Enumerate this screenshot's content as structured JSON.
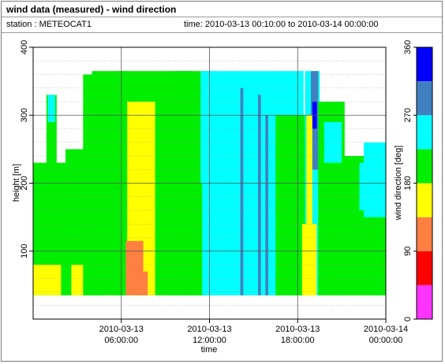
{
  "window": {
    "title": "wind data (measured) - wind direction",
    "station_label": "station : METEOCAT1",
    "time_label": "time: 2010-03-13 00:10:00 to 2010-03-14 00:00:00"
  },
  "chart_data": {
    "type": "heatmap",
    "title": "",
    "xlabel": "time",
    "ylabel": "height [m]",
    "colorbar_label": "wind direction [deg]",
    "xlim_hours": [
      0,
      24
    ],
    "ylim": [
      0,
      400
    ],
    "x_ticks": [
      {
        "hour": 6,
        "line1": "2010-03-13",
        "line2": "06:00:00"
      },
      {
        "hour": 12,
        "line1": "2010-03-13",
        "line2": "12:00:00"
      },
      {
        "hour": 18,
        "line1": "2010-03-13",
        "line2": "18:00:00"
      },
      {
        "hour": 24,
        "line1": "2010-03-14",
        "line2": "00:00:00"
      }
    ],
    "y_ticks": [
      100,
      200,
      300,
      400
    ],
    "grid": true,
    "colorbar": {
      "ticks": [
        0,
        90,
        180,
        270,
        360
      ],
      "bands": [
        {
          "from": 0,
          "to": 45,
          "color": "#ff33ff"
        },
        {
          "from": 45,
          "to": 90,
          "color": "#ff0000"
        },
        {
          "from": 90,
          "to": 135,
          "color": "#ff8040"
        },
        {
          "from": 135,
          "to": 180,
          "color": "#ffff00"
        },
        {
          "from": 180,
          "to": 225,
          "color": "#00ee00"
        },
        {
          "from": 225,
          "to": 270,
          "color": "#00ffff"
        },
        {
          "from": 270,
          "to": 315,
          "color": "#4080c0"
        },
        {
          "from": 315,
          "to": 360,
          "color": "#0000ff"
        }
      ]
    },
    "regions": [
      {
        "h0": 0.0,
        "h1": 2.2,
        "z0": 35,
        "z1": 230,
        "dir": 200
      },
      {
        "h0": 0.0,
        "h1": 1.9,
        "z0": 35,
        "z1": 80,
        "dir": 160
      },
      {
        "h0": 0.9,
        "h1": 1.6,
        "z0": 230,
        "z1": 330,
        "dir": 200
      },
      {
        "h0": 1.0,
        "h1": 1.5,
        "z0": 290,
        "z1": 330,
        "dir": 250
      },
      {
        "h0": 2.2,
        "h1": 4.8,
        "z0": 35,
        "z1": 250,
        "dir": 200
      },
      {
        "h0": 2.6,
        "h1": 4.0,
        "z0": 35,
        "z1": 80,
        "dir": 160
      },
      {
        "h0": 3.4,
        "h1": 6.4,
        "z0": 35,
        "z1": 360,
        "dir": 195
      },
      {
        "h0": 4.0,
        "h1": 6.4,
        "z0": 360,
        "z1": 365,
        "dir": 195
      },
      {
        "h0": 5.6,
        "h1": 9.6,
        "z0": 35,
        "z1": 365,
        "dir": 200
      },
      {
        "h0": 6.4,
        "h1": 8.3,
        "z0": 35,
        "z1": 320,
        "dir": 165
      },
      {
        "h0": 6.3,
        "h1": 7.5,
        "z0": 35,
        "z1": 115,
        "dir": 120
      },
      {
        "h0": 7.0,
        "h1": 7.8,
        "z0": 35,
        "z1": 70,
        "dir": 100
      },
      {
        "h0": 9.3,
        "h1": 12.0,
        "z0": 35,
        "z1": 365,
        "dir": 200
      },
      {
        "h0": 9.8,
        "h1": 10.8,
        "z0": 35,
        "z1": 365,
        "dir": 190
      },
      {
        "h0": 11.4,
        "h1": 18.4,
        "z0": 35,
        "z1": 365,
        "dir": 250
      },
      {
        "h0": 14.1,
        "h1": 14.3,
        "z0": 35,
        "z1": 340,
        "dir": 290
      },
      {
        "h0": 15.3,
        "h1": 15.5,
        "z0": 35,
        "z1": 330,
        "dir": 290
      },
      {
        "h0": 15.8,
        "h1": 16.0,
        "z0": 35,
        "z1": 300,
        "dir": 290
      },
      {
        "h0": 16.5,
        "h1": 18.5,
        "z0": 35,
        "z1": 300,
        "dir": 200
      },
      {
        "h0": 17.6,
        "h1": 18.6,
        "z0": 35,
        "z1": 260,
        "dir": 200
      },
      {
        "h0": 18.5,
        "h1": 19.5,
        "z0": 35,
        "z1": 365,
        "dir": 250
      },
      {
        "h0": 18.9,
        "h1": 19.4,
        "z0": 220,
        "z1": 365,
        "dir": 300
      },
      {
        "h0": 19.0,
        "h1": 19.3,
        "z0": 280,
        "z1": 320,
        "dir": 340
      },
      {
        "h0": 18.6,
        "h1": 19.0,
        "z0": 35,
        "z1": 300,
        "dir": 165
      },
      {
        "h0": 18.3,
        "h1": 19.3,
        "z0": 35,
        "z1": 140,
        "dir": 165
      },
      {
        "h0": 19.4,
        "h1": 21.2,
        "z0": 35,
        "z1": 320,
        "dir": 200
      },
      {
        "h0": 19.8,
        "h1": 21.0,
        "z0": 230,
        "z1": 290,
        "dir": 250
      },
      {
        "h0": 21.0,
        "h1": 24.0,
        "z0": 35,
        "z1": 240,
        "dir": 200
      },
      {
        "h0": 22.2,
        "h1": 22.6,
        "z0": 160,
        "z1": 230,
        "dir": 250
      },
      {
        "h0": 22.5,
        "h1": 24.0,
        "z0": 150,
        "z1": 260,
        "dir": 250
      },
      {
        "h0": 23.0,
        "h1": 24.0,
        "z0": 35,
        "z1": 110,
        "dir": 200
      },
      {
        "h0": 9.0,
        "h1": 11.5,
        "z0": 35,
        "z1": 200,
        "dir": 200
      }
    ]
  }
}
